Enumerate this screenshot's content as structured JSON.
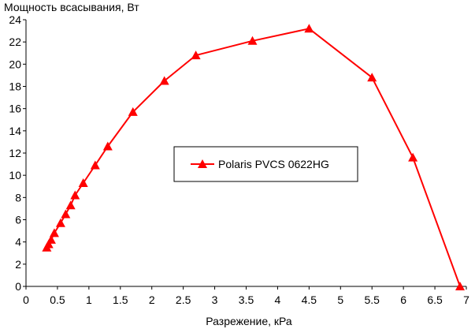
{
  "chart_data": {
    "type": "line",
    "title": "Мощность всасывания, Вт",
    "xlabel": "Разрежение, кРа",
    "ylabel": "Мощность всасывания, Вт",
    "xlim": [
      0,
      7
    ],
    "ylim": [
      0,
      24
    ],
    "x_ticks": [
      "0",
      "0.5",
      "1",
      "1.5",
      "2",
      "2.5",
      "3",
      "3.5",
      "4",
      "4.5",
      "5",
      "5.5",
      "6",
      "6.5",
      "7"
    ],
    "y_ticks": [
      "0",
      "2",
      "4",
      "6",
      "8",
      "10",
      "12",
      "14",
      "16",
      "18",
      "20",
      "22",
      "24"
    ],
    "grid": false,
    "legend_position": "center",
    "series": [
      {
        "name": "Polaris PVCS 0622HG",
        "color": "#ff0000",
        "marker": "triangle",
        "x": [
          0.33,
          0.36,
          0.4,
          0.45,
          0.55,
          0.63,
          0.71,
          0.78,
          0.91,
          1.1,
          1.3,
          1.7,
          2.2,
          2.7,
          3.6,
          4.5,
          5.5,
          6.15,
          6.9
        ],
        "y": [
          3.5,
          3.8,
          4.2,
          4.8,
          5.7,
          6.5,
          7.3,
          8.2,
          9.3,
          10.9,
          12.6,
          15.7,
          18.5,
          20.8,
          22.1,
          23.2,
          18.8,
          11.6,
          0
        ]
      }
    ]
  }
}
